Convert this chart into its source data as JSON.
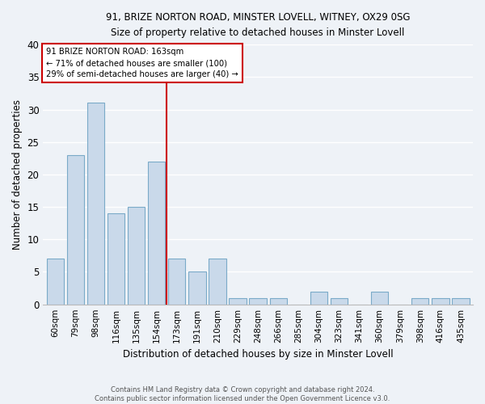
{
  "title1": "91, BRIZE NORTON ROAD, MINSTER LOVELL, WITNEY, OX29 0SG",
  "title2": "Size of property relative to detached houses in Minster Lovell",
  "xlabel": "Distribution of detached houses by size in Minster Lovell",
  "ylabel": "Number of detached properties",
  "categories": [
    "60sqm",
    "79sqm",
    "98sqm",
    "116sqm",
    "135sqm",
    "154sqm",
    "173sqm",
    "191sqm",
    "210sqm",
    "229sqm",
    "248sqm",
    "266sqm",
    "285sqm",
    "304sqm",
    "323sqm",
    "341sqm",
    "360sqm",
    "379sqm",
    "398sqm",
    "416sqm",
    "435sqm"
  ],
  "values": [
    7,
    23,
    31,
    14,
    15,
    22,
    7,
    5,
    7,
    1,
    1,
    1,
    0,
    2,
    1,
    0,
    2,
    0,
    1,
    1,
    1
  ],
  "bar_color": "#c9d9ea",
  "bar_edgecolor": "#7aaac8",
  "background_color": "#eef2f7",
  "grid_color": "#ffffff",
  "vline_x": 5.5,
  "vline_color": "#cc0000",
  "annotation_text": "91 BRIZE NORTON ROAD: 163sqm\n← 71% of detached houses are smaller (100)\n29% of semi-detached houses are larger (40) →",
  "footer": "Contains HM Land Registry data © Crown copyright and database right 2024.\nContains public sector information licensed under the Open Government Licence v3.0.",
  "ylim": [
    0,
    40
  ],
  "yticks": [
    0,
    5,
    10,
    15,
    20,
    25,
    30,
    35,
    40
  ]
}
